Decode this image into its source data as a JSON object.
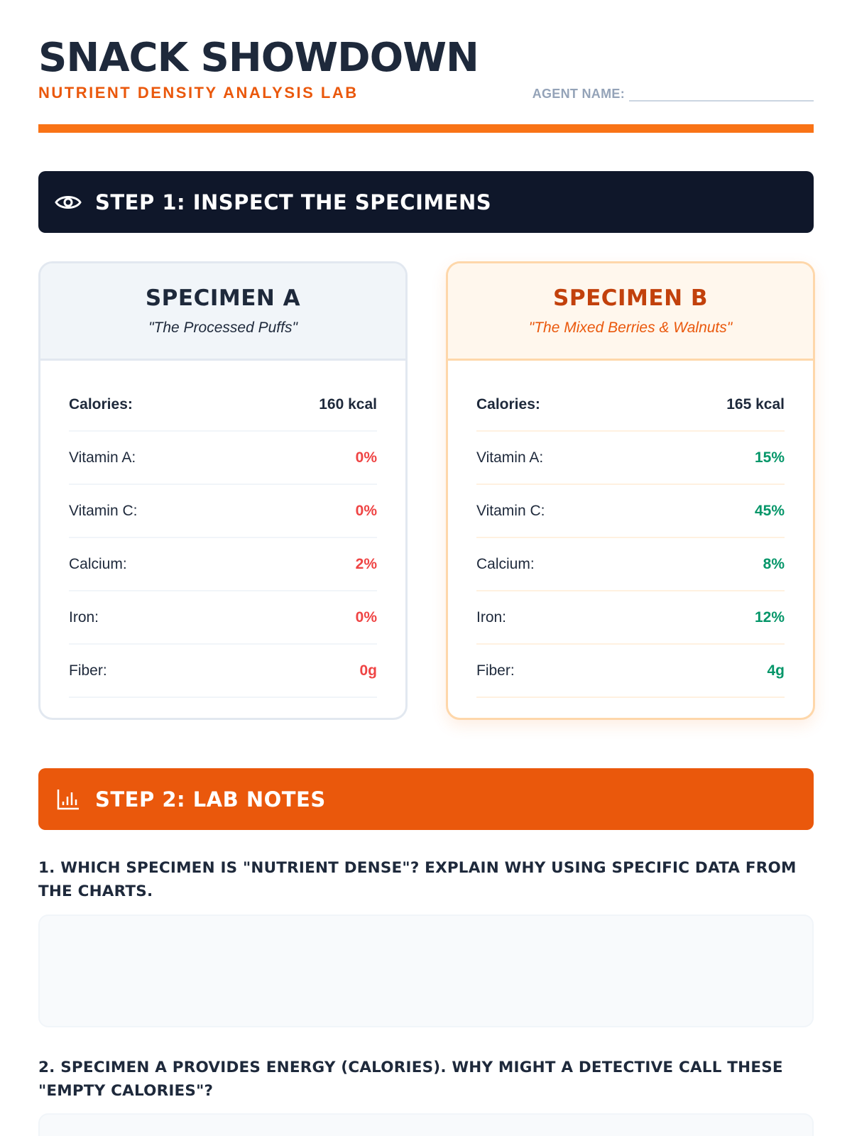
{
  "header": {
    "title": "SNACK SHOWDOWN",
    "subtitle": "NUTRIENT DENSITY ANALYSIS LAB",
    "agent_label": "AGENT NAME:"
  },
  "colors": {
    "accent": "#f97316",
    "accent_dark": "#ea580c",
    "navy": "#0f172a",
    "bad": "#ef4444",
    "good": "#059669"
  },
  "step1": {
    "title": "STEP 1: INSPECT THE SPECIMENS",
    "icon": "eye-icon"
  },
  "specimens": [
    {
      "title": "SPECIMEN A",
      "subtitle": "\"The Processed Puffs\"",
      "rows": [
        {
          "label": "Calories:",
          "value": "160 kcal"
        },
        {
          "label": "Vitamin A:",
          "value": "0%"
        },
        {
          "label": "Vitamin C:",
          "value": "0%"
        },
        {
          "label": "Calcium:",
          "value": "2%"
        },
        {
          "label": "Iron:",
          "value": "0%"
        },
        {
          "label": "Fiber:",
          "value": "0g"
        }
      ]
    },
    {
      "title": "SPECIMEN B",
      "subtitle": "\"The Mixed Berries & Walnuts\"",
      "rows": [
        {
          "label": "Calories:",
          "value": "165 kcal"
        },
        {
          "label": "Vitamin A:",
          "value": "15%"
        },
        {
          "label": "Vitamin C:",
          "value": "45%"
        },
        {
          "label": "Calcium:",
          "value": "8%"
        },
        {
          "label": "Iron:",
          "value": "12%"
        },
        {
          "label": "Fiber:",
          "value": "4g"
        }
      ]
    }
  ],
  "step2": {
    "title": "STEP 2: LAB NOTES",
    "icon": "bar-chart-icon"
  },
  "questions": [
    "1. WHICH SPECIMEN IS \"NUTRIENT DENSE\"? EXPLAIN WHY USING SPECIFIC DATA FROM THE CHARTS.",
    "2. SPECIMEN A PROVIDES ENERGY (CALORIES). WHY MIGHT A DETECTIVE CALL THESE \"EMPTY CALORIES\"?"
  ]
}
